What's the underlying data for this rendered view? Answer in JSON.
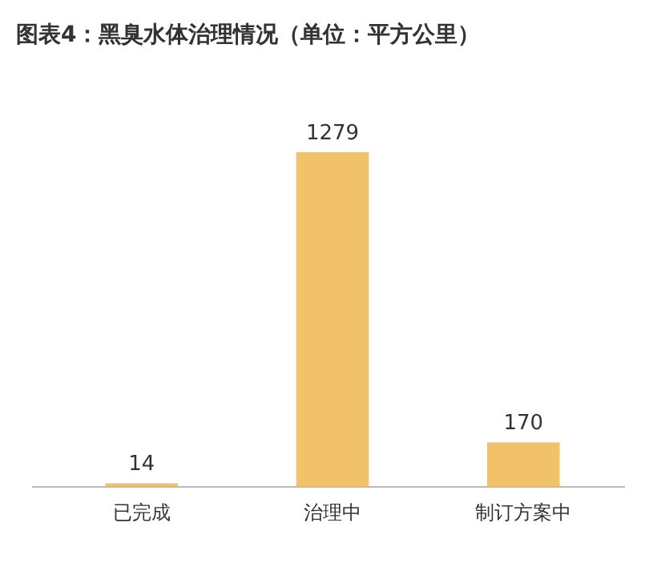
{
  "chart_data": {
    "type": "bar",
    "title": "图表4：黑臭水体治理情况（单位：平方公里）",
    "categories": [
      "已完成",
      "治理中",
      "制订方案中"
    ],
    "values": [
      14,
      1279,
      170
    ],
    "color": "#f2c26b",
    "data_labels": true
  }
}
